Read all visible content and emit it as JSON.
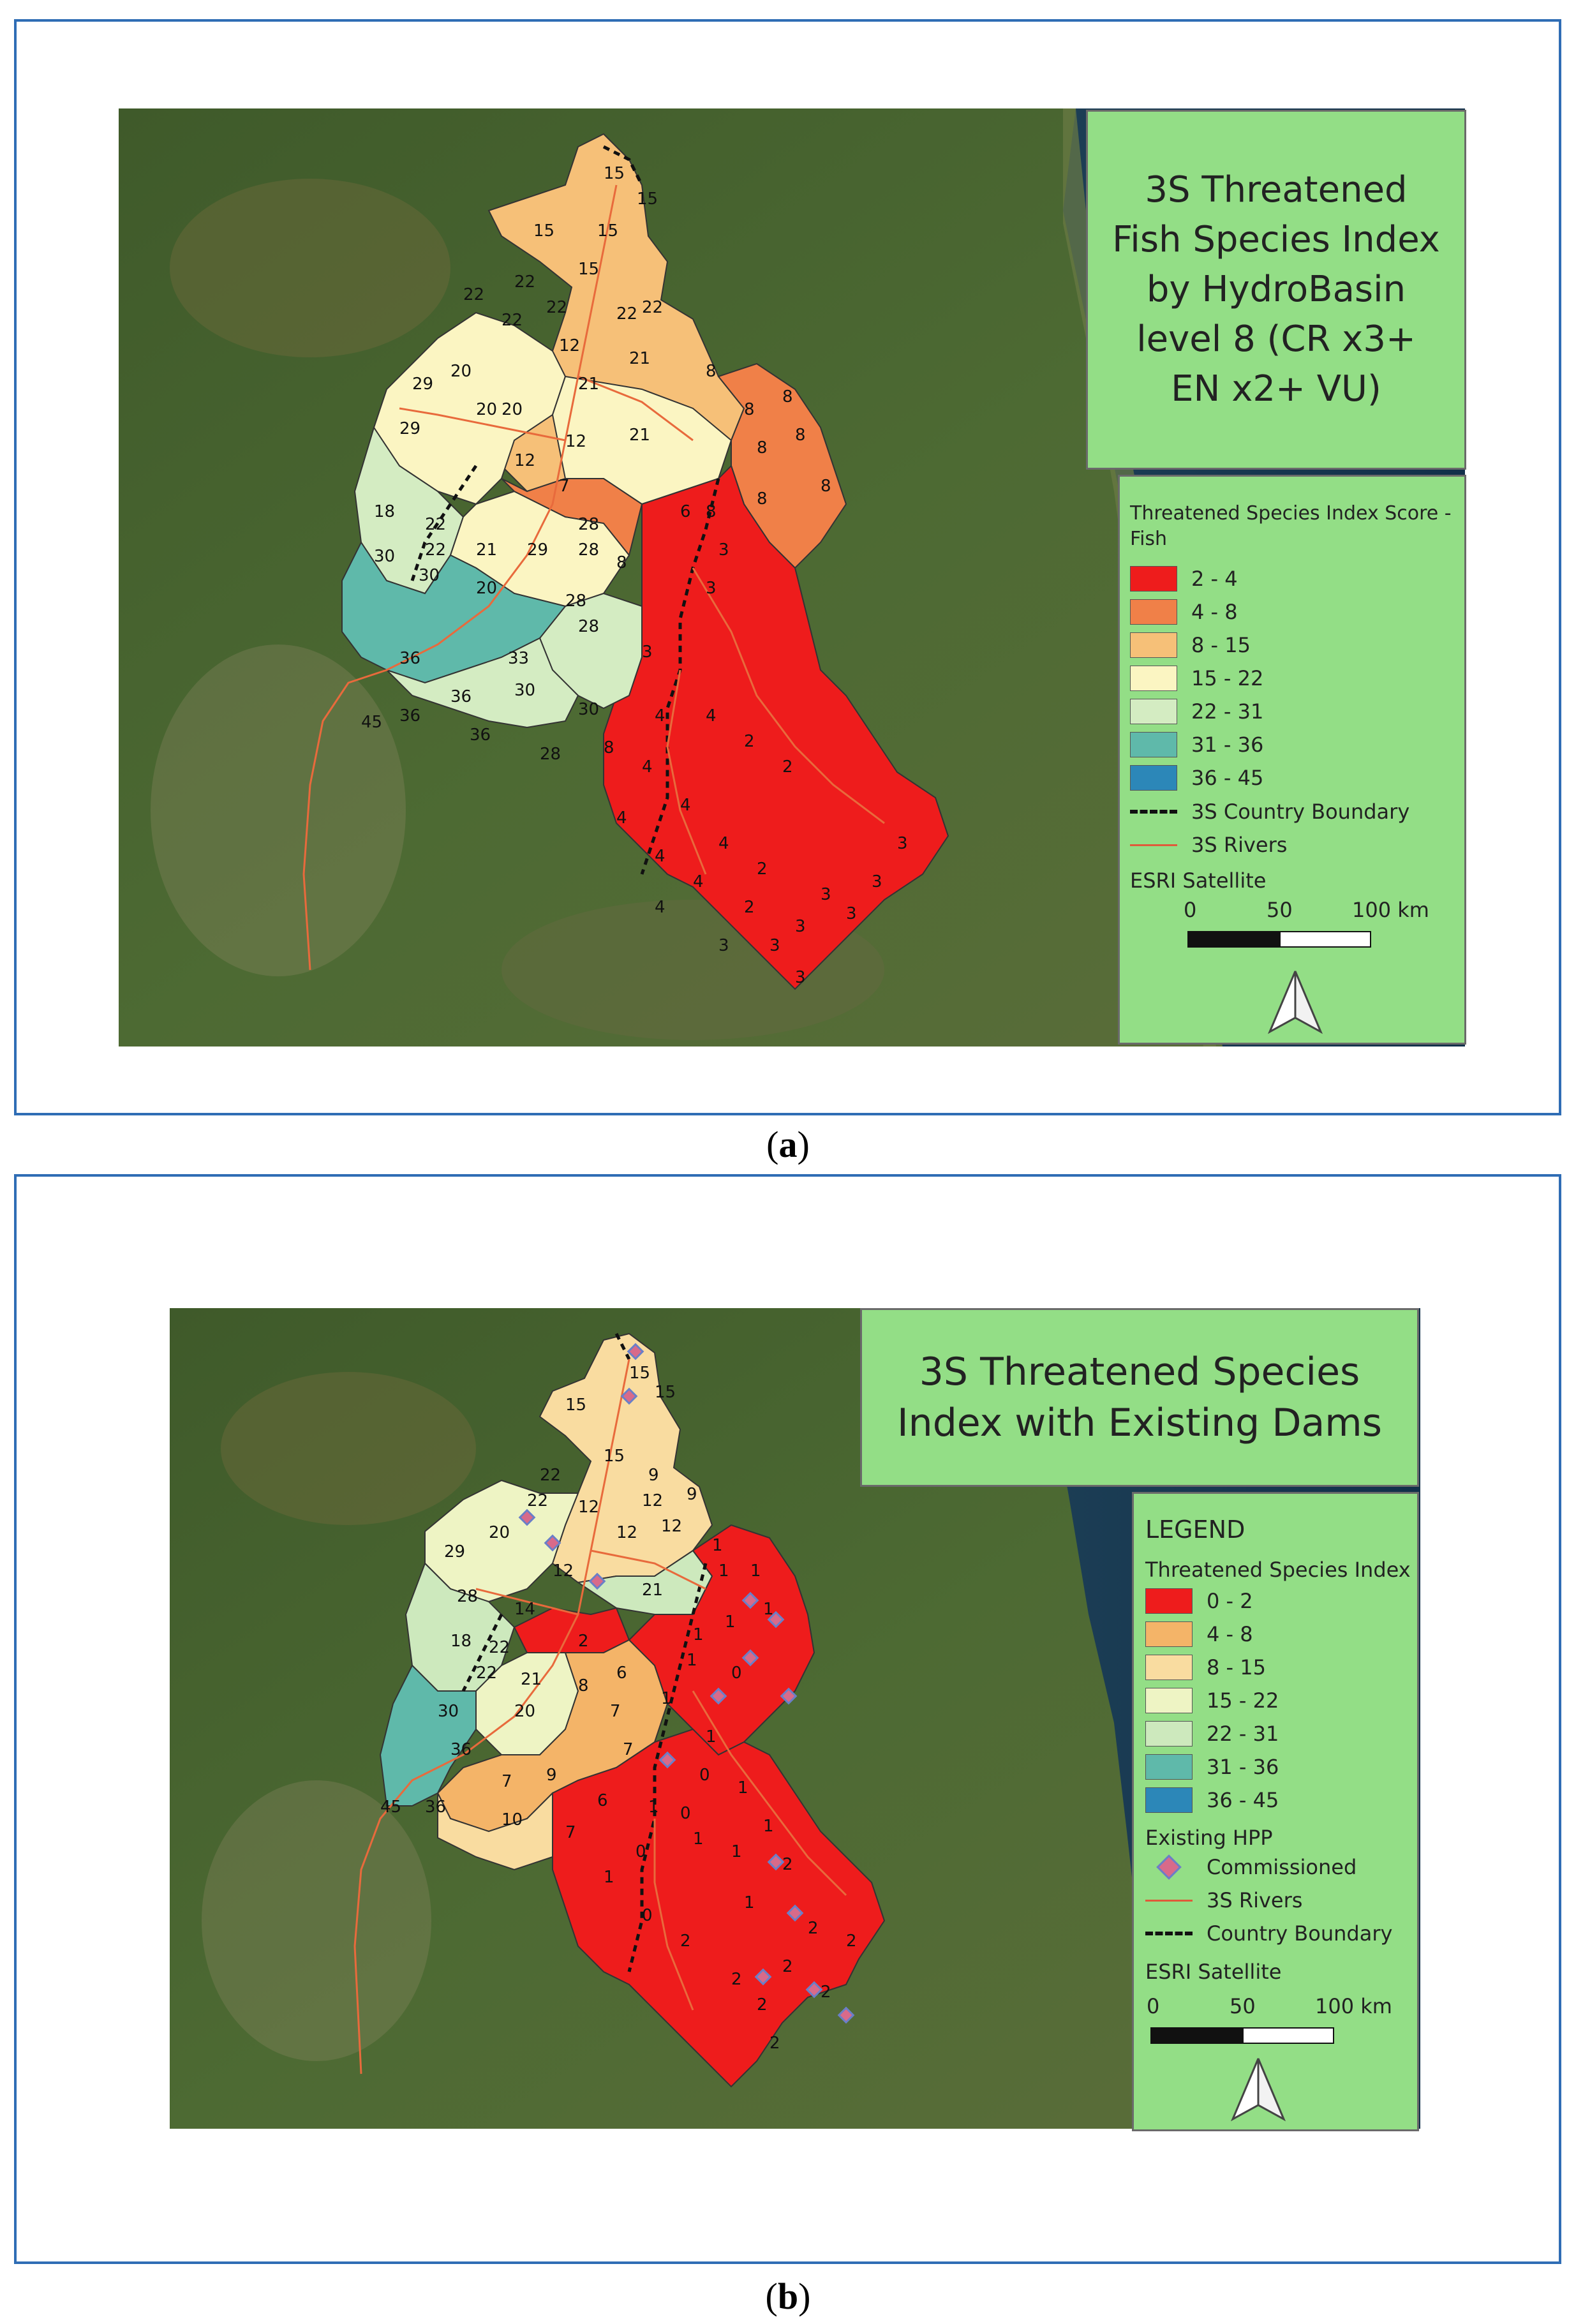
{
  "panel_a": {
    "caption_prefix": "(",
    "caption_letter": "a",
    "caption_suffix": ")",
    "title": "3S Threatened Fish Species Index by HydroBasin level 8 (CR x3+ EN x2+ VU)",
    "legend": {
      "heading": "Threatened Species Index Score - Fish",
      "classes": [
        {
          "label": "2 - 4",
          "color": "#ee1c1c"
        },
        {
          "label": "4 - 8",
          "color": "#f08048"
        },
        {
          "label": "8 - 15",
          "color": "#f6c078"
        },
        {
          "label": "15 - 22",
          "color": "#fbf5c2"
        },
        {
          "label": "22 - 31",
          "color": "#d4ecc2"
        },
        {
          "label": "31 - 36",
          "color": "#5fb9aa"
        },
        {
          "label": "36 - 45",
          "color": "#2c87b8"
        }
      ],
      "boundary_label": "3S Country Boundary",
      "rivers_label": "3S Rivers",
      "basemap_label": "ESRI Satellite",
      "scale_labels": [
        "0",
        "50",
        "100 km"
      ]
    },
    "basin_labels": [
      "15",
      "15",
      "15",
      "15",
      "15",
      "22",
      "22",
      "22",
      "22",
      "22",
      "12",
      "22",
      "20",
      "21",
      "20",
      "20",
      "21",
      "8",
      "8",
      "8",
      "29",
      "29",
      "12",
      "12",
      "21",
      "8",
      "8",
      "8",
      "8",
      "18",
      "22",
      "7",
      "6",
      "3",
      "8",
      "30",
      "22",
      "21",
      "29",
      "28",
      "28",
      "3",
      "8",
      "30",
      "20",
      "28",
      "36",
      "33",
      "28",
      "3",
      "45",
      "36",
      "36",
      "30",
      "30",
      "8",
      "4",
      "4",
      "36",
      "28",
      "2",
      "4",
      "2",
      "4",
      "4",
      "4",
      "4",
      "2",
      "3",
      "3",
      "4",
      "4",
      "2",
      "3",
      "3",
      "3",
      "3",
      "3",
      "3"
    ]
  },
  "panel_b": {
    "caption_prefix": "(",
    "caption_letter": "b",
    "caption_suffix": ")",
    "title": "3S Threatened Species Index with Existing Dams",
    "legend": {
      "legend_title": "LEGEND",
      "heading": "Threatened Species Index",
      "classes": [
        {
          "label": "0 - 2",
          "color": "#ee1c1c"
        },
        {
          "label": "4 - 8",
          "color": "#f4b468"
        },
        {
          "label": "8 - 15",
          "color": "#f9dca0"
        },
        {
          "label": "15 - 22",
          "color": "#eef4c4"
        },
        {
          "label": "22 - 31",
          "color": "#cde9bd"
        },
        {
          "label": "31 - 36",
          "color": "#5fb9aa"
        },
        {
          "label": "36 - 45",
          "color": "#2c87b8"
        }
      ],
      "hpp_heading": "Existing HPP",
      "commissioned_label": "Commissioned",
      "rivers_label": "3S Rivers",
      "boundary_label": "Country Boundary",
      "basemap_label": "ESRI Satellite",
      "scale_labels": [
        "0",
        "50",
        "100 km"
      ]
    },
    "basin_labels": [
      "15",
      "15",
      "15",
      "15",
      "22",
      "22",
      "9",
      "12",
      "12",
      "12",
      "12",
      "9",
      "20",
      "29",
      "28",
      "12",
      "21",
      "1",
      "1",
      "1",
      "1",
      "1",
      "2",
      "1",
      "14",
      "18",
      "22",
      "6",
      "1",
      "0",
      "22",
      "21",
      "8",
      "1",
      "30",
      "20",
      "7",
      "7",
      "1",
      "36",
      "7",
      "9",
      "0",
      "6",
      "1",
      "10",
      "7",
      "1",
      "1",
      "1",
      "45",
      "36",
      "0",
      "0",
      "1",
      "1",
      "2",
      "0",
      "1",
      "2",
      "2",
      "2",
      "2",
      "2",
      "2",
      "2",
      "2"
    ]
  }
}
